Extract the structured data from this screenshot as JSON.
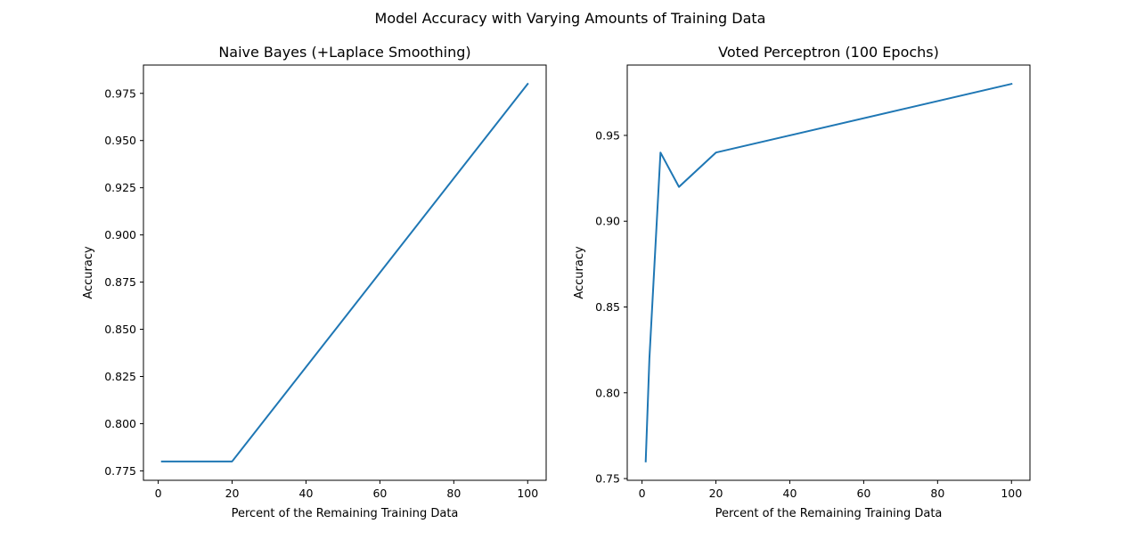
{
  "figure": {
    "suptitle": "Model Accuracy with Varying Amounts of Training Data"
  },
  "chart_data": [
    {
      "type": "line",
      "title": "Naive Bayes (+Laplace Smoothing)",
      "xlabel": "Percent of the Remaining Training Data",
      "ylabel": "Accuracy",
      "xlim": [
        -4.0,
        105.0
      ],
      "ylim": [
        0.77,
        0.99
      ],
      "xticks": [
        0,
        20,
        40,
        60,
        80,
        100
      ],
      "xtick_labels": [
        "0",
        "20",
        "40",
        "60",
        "80",
        "100"
      ],
      "yticks": [
        0.775,
        0.8,
        0.825,
        0.85,
        0.875,
        0.9,
        0.925,
        0.95,
        0.975
      ],
      "ytick_labels": [
        "0.775",
        "0.800",
        "0.825",
        "0.850",
        "0.875",
        "0.900",
        "0.925",
        "0.950",
        "0.975"
      ],
      "grid": false,
      "series": [
        {
          "color": "#1f77b4",
          "x": [
            1,
            2,
            5,
            10,
            20,
            100
          ],
          "y": [
            0.78,
            0.78,
            0.78,
            0.78,
            0.78,
            0.98
          ]
        }
      ]
    },
    {
      "type": "line",
      "title": "Voted Perceptron (100 Epochs)",
      "xlabel": "Percent of the Remaining Training Data",
      "ylabel": "Accuracy",
      "xlim": [
        -4.0,
        105.0
      ],
      "ylim": [
        0.749,
        0.991
      ],
      "xticks": [
        0,
        20,
        40,
        60,
        80,
        100
      ],
      "xtick_labels": [
        "0",
        "20",
        "40",
        "60",
        "80",
        "100"
      ],
      "yticks": [
        0.75,
        0.8,
        0.85,
        0.9,
        0.95
      ],
      "ytick_labels": [
        "0.75",
        "0.80",
        "0.85",
        "0.90",
        "0.95"
      ],
      "grid": false,
      "series": [
        {
          "color": "#1f77b4",
          "x": [
            1,
            2,
            5,
            10,
            20,
            100
          ],
          "y": [
            0.76,
            0.82,
            0.94,
            0.92,
            0.94,
            0.98
          ]
        }
      ]
    }
  ]
}
